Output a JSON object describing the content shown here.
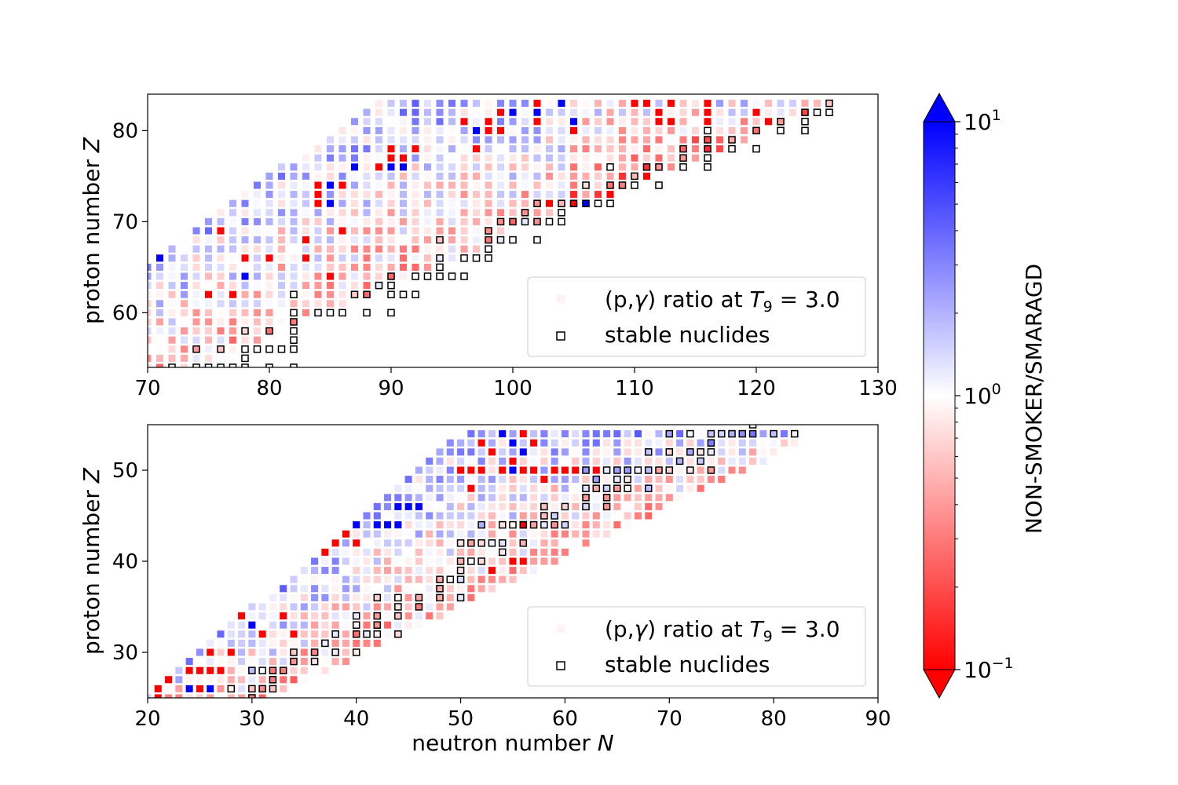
{
  "chart_data": [
    {
      "type": "heatmap",
      "panel": "top",
      "xlabel": "",
      "ylabel_text": "proton number ",
      "ylabel_var": "Z",
      "xlim": [
        70,
        130
      ],
      "ylim": [
        54,
        84
      ],
      "xticks": [
        70,
        80,
        90,
        100,
        110,
        120,
        130
      ],
      "yticks": [
        60,
        70,
        80
      ],
      "legend": {
        "placement": "lower-right",
        "ratio_label_prefix": "(p,",
        "ratio_label_gamma": "γ",
        "ratio_label_mid": ") ratio at ",
        "ratio_label_T": "T",
        "ratio_label_sub": "9",
        "ratio_label_value": " = 3.0",
        "stable_label": "stable nuclides"
      },
      "stable_nuclides": [
        [
          126,
          83
        ],
        [
          124,
          82
        ],
        [
          125,
          82
        ],
        [
          126,
          82
        ],
        [
          122,
          81
        ],
        [
          124,
          81
        ],
        [
          120,
          80
        ],
        [
          122,
          80
        ],
        [
          124,
          80
        ],
        [
          116,
          80
        ],
        [
          118,
          79
        ],
        [
          116,
          79
        ],
        [
          118,
          78
        ],
        [
          120,
          78
        ],
        [
          114,
          78
        ],
        [
          116,
          78
        ],
        [
          114,
          77
        ],
        [
          116,
          77
        ],
        [
          114,
          76
        ],
        [
          116,
          76
        ],
        [
          108,
          76
        ],
        [
          111,
          76
        ],
        [
          112,
          76
        ],
        [
          110,
          75
        ],
        [
          108,
          74
        ],
        [
          109,
          74
        ],
        [
          110,
          74
        ],
        [
          112,
          74
        ],
        [
          104,
          72
        ],
        [
          105,
          72
        ],
        [
          106,
          72
        ],
        [
          107,
          72
        ],
        [
          108,
          72
        ],
        [
          102,
          72
        ],
        [
          101,
          71
        ],
        [
          104,
          71
        ],
        [
          99,
          70
        ],
        [
          100,
          70
        ],
        [
          101,
          70
        ],
        [
          102,
          70
        ],
        [
          103,
          70
        ],
        [
          104,
          70
        ],
        [
          98,
          68
        ],
        [
          99,
          68
        ],
        [
          100,
          68
        ],
        [
          102,
          68
        ],
        [
          94,
          66
        ],
        [
          96,
          66
        ],
        [
          97,
          66
        ],
        [
          98,
          66
        ],
        [
          98,
          67
        ],
        [
          90,
          64
        ],
        [
          92,
          64
        ],
        [
          93,
          64
        ],
        [
          94,
          64
        ],
        [
          95,
          64
        ],
        [
          96,
          64
        ],
        [
          90,
          63
        ],
        [
          88,
          62
        ],
        [
          90,
          62
        ],
        [
          91,
          62
        ],
        [
          92,
          62
        ],
        [
          87,
          62
        ],
        [
          84,
          60
        ],
        [
          85,
          60
        ],
        [
          86,
          60
        ],
        [
          88,
          60
        ],
        [
          90,
          60
        ],
        [
          82,
          62
        ],
        [
          82,
          60
        ],
        [
          82,
          59
        ],
        [
          78,
          58
        ],
        [
          80,
          58
        ],
        [
          82,
          58
        ],
        [
          76,
          56
        ],
        [
          78,
          56
        ],
        [
          79,
          56
        ],
        [
          80,
          56
        ],
        [
          81,
          56
        ],
        [
          82,
          56
        ],
        [
          82,
          57
        ],
        [
          74,
          56
        ],
        [
          78,
          55
        ],
        [
          74,
          54
        ],
        [
          75,
          54
        ],
        [
          76,
          54
        ],
        [
          77,
          54
        ],
        [
          78,
          54
        ],
        [
          80,
          54
        ],
        [
          82,
          54
        ],
        [
          72,
          54
        ],
        [
          94,
          68
        ],
        [
          94,
          65
        ],
        [
          89,
          63
        ],
        [
          98,
          69
        ],
        [
          106,
          74
        ]
      ],
      "special_cells": {
        "red": [
          [
            102,
            83
          ],
          [
            110,
            83
          ],
          [
            111,
            83
          ],
          [
            113,
            83
          ],
          [
            116,
            83
          ],
          [
            99,
            82
          ],
          [
            102,
            81
          ],
          [
            98,
            81
          ],
          [
            96,
            81
          ],
          [
            98,
            80
          ],
          [
            99,
            80
          ],
          [
            112,
            82
          ],
          [
            112,
            81
          ],
          [
            116,
            82
          ],
          [
            120,
            82
          ],
          [
            121,
            81
          ],
          [
            113,
            81
          ],
          [
            116,
            81
          ],
          [
            105,
            80
          ],
          [
            90,
            78
          ],
          [
            92,
            78
          ],
          [
            90,
            77
          ],
          [
            91,
            77
          ],
          [
            89,
            76
          ],
          [
            91,
            77
          ],
          [
            84,
            74
          ],
          [
            84,
            73
          ],
          [
            86,
            74
          ],
          [
            84,
            72
          ],
          [
            83,
            68
          ],
          [
            76,
            69
          ],
          [
            86,
            69
          ],
          [
            78,
            66
          ],
          [
            80,
            66
          ],
          [
            83,
            66
          ],
          [
            85,
            64
          ],
          [
            75,
            62
          ],
          [
            77,
            62
          ],
          [
            84,
            58
          ],
          [
            82,
            54
          ],
          [
            97,
            78
          ],
          [
            103,
            72
          ],
          [
            105,
            72
          ],
          [
            107,
            72
          ],
          [
            109,
            73
          ],
          [
            112,
            74
          ],
          [
            111,
            75
          ],
          [
            108,
            73
          ]
        ],
        "blue": [
          [
            102,
            82
          ],
          [
            100,
            82
          ],
          [
            97,
            80
          ],
          [
            87,
            76
          ],
          [
            89,
            76
          ],
          [
            90,
            76
          ],
          [
            91,
            76
          ],
          [
            85,
            74
          ],
          [
            85,
            72
          ],
          [
            71,
            66
          ],
          [
            78,
            64
          ],
          [
            106,
            72
          ],
          [
            104,
            83
          ],
          [
            105,
            81
          ]
        ]
      }
    },
    {
      "type": "heatmap",
      "panel": "bottom",
      "xlabel_text": "neutron number ",
      "xlabel_var": "N",
      "ylabel_text": "proton number ",
      "ylabel_var": "Z",
      "xlim": [
        20,
        90
      ],
      "ylim": [
        25,
        55
      ],
      "xticks": [
        20,
        30,
        40,
        50,
        60,
        70,
        80,
        90
      ],
      "yticks": [
        30,
        40,
        50
      ],
      "legend": {
        "placement": "lower-right",
        "ratio_label_prefix": "(p,",
        "ratio_label_gamma": "γ",
        "ratio_label_mid": ") ratio at ",
        "ratio_label_T": "T",
        "ratio_label_sub": "9",
        "ratio_label_value": " = 3.0",
        "stable_label": "stable nuclides"
      },
      "stable_nuclides": [
        [
          70,
          54
        ],
        [
          72,
          54
        ],
        [
          74,
          54
        ],
        [
          75,
          54
        ],
        [
          76,
          54
        ],
        [
          77,
          54
        ],
        [
          78,
          54
        ],
        [
          80,
          54
        ],
        [
          82,
          54
        ],
        [
          78,
          55
        ],
        [
          74,
          53
        ],
        [
          68,
          52
        ],
        [
          70,
          52
        ],
        [
          72,
          52
        ],
        [
          73,
          52
        ],
        [
          74,
          52
        ],
        [
          71,
          51
        ],
        [
          73,
          51
        ],
        [
          62,
          50
        ],
        [
          64,
          50
        ],
        [
          65,
          50
        ],
        [
          66,
          50
        ],
        [
          67,
          50
        ],
        [
          68,
          50
        ],
        [
          69,
          50
        ],
        [
          70,
          50
        ],
        [
          72,
          50
        ],
        [
          74,
          50
        ],
        [
          63,
          49
        ],
        [
          65,
          49
        ],
        [
          62,
          48
        ],
        [
          63,
          48
        ],
        [
          64,
          48
        ],
        [
          65,
          48
        ],
        [
          66,
          48
        ],
        [
          68,
          48
        ],
        [
          62,
          47
        ],
        [
          64,
          47
        ],
        [
          58,
          46
        ],
        [
          60,
          46
        ],
        [
          62,
          46
        ],
        [
          64,
          46
        ],
        [
          59,
          45
        ],
        [
          56,
          44
        ],
        [
          57,
          44
        ],
        [
          58,
          44
        ],
        [
          59,
          44
        ],
        [
          60,
          44
        ],
        [
          52,
          44
        ],
        [
          54,
          44
        ],
        [
          55,
          44
        ],
        [
          56,
          44
        ],
        [
          58,
          45
        ],
        [
          50,
          42
        ],
        [
          51,
          42
        ],
        [
          52,
          42
        ],
        [
          53,
          42
        ],
        [
          54,
          42
        ],
        [
          56,
          42
        ],
        [
          54,
          41
        ],
        [
          50,
          40
        ],
        [
          51,
          40
        ],
        [
          52,
          40
        ],
        [
          50,
          39
        ],
        [
          48,
          38
        ],
        [
          49,
          38
        ],
        [
          50,
          38
        ],
        [
          48,
          37
        ],
        [
          50,
          36
        ],
        [
          48,
          36
        ],
        [
          46,
          36
        ],
        [
          44,
          36
        ],
        [
          42,
          36
        ],
        [
          44,
          35
        ],
        [
          46,
          35
        ],
        [
          40,
          34
        ],
        [
          42,
          34
        ],
        [
          44,
          34
        ],
        [
          40,
          33
        ],
        [
          42,
          33
        ],
        [
          38,
          32
        ],
        [
          40,
          32
        ],
        [
          41,
          32
        ],
        [
          42,
          32
        ],
        [
          44,
          32
        ],
        [
          36,
          30
        ],
        [
          38,
          30
        ],
        [
          40,
          30
        ],
        [
          37,
          31
        ],
        [
          34,
          30
        ],
        [
          36,
          29
        ],
        [
          34,
          29
        ],
        [
          32,
          28
        ],
        [
          33,
          28
        ],
        [
          30,
          28
        ],
        [
          31,
          28
        ],
        [
          32,
          27
        ],
        [
          28,
          26
        ],
        [
          30,
          26
        ],
        [
          31,
          26
        ],
        [
          32,
          26
        ],
        [
          30,
          25
        ],
        [
          66,
          49
        ]
      ],
      "special_cells": {
        "red": [
          [
            56,
            55
          ],
          [
            56,
            54
          ],
          [
            57,
            53
          ],
          [
            52,
            53
          ],
          [
            53,
            52
          ],
          [
            50,
            50
          ],
          [
            51,
            50
          ],
          [
            55,
            51
          ],
          [
            56,
            50
          ],
          [
            59,
            50
          ],
          [
            60,
            50
          ],
          [
            63,
            50
          ],
          [
            58,
            49
          ],
          [
            51,
            48
          ],
          [
            52,
            50
          ],
          [
            54,
            50
          ],
          [
            57,
            50
          ],
          [
            61,
            50
          ],
          [
            55,
            40
          ],
          [
            56,
            40
          ],
          [
            53,
            39
          ],
          [
            38,
            43
          ],
          [
            39,
            43
          ],
          [
            38,
            42
          ],
          [
            40,
            42
          ],
          [
            37,
            41
          ],
          [
            33,
            34
          ],
          [
            29,
            34
          ],
          [
            31,
            32
          ],
          [
            34,
            32
          ],
          [
            28,
            30
          ],
          [
            24,
            30
          ],
          [
            26,
            30
          ],
          [
            22,
            29
          ],
          [
            24,
            28
          ],
          [
            25,
            28
          ],
          [
            26,
            28
          ],
          [
            27,
            28
          ],
          [
            22,
            27
          ],
          [
            21,
            26
          ],
          [
            25,
            26
          ],
          [
            21,
            25
          ],
          [
            56,
            44
          ]
        ],
        "blue": [
          [
            54,
            54
          ],
          [
            55,
            53
          ],
          [
            53,
            52
          ],
          [
            56,
            52
          ],
          [
            55,
            50
          ],
          [
            40,
            44
          ],
          [
            42,
            44
          ],
          [
            43,
            44
          ],
          [
            44,
            44
          ],
          [
            45,
            46
          ],
          [
            44,
            46
          ],
          [
            40,
            42
          ],
          [
            33,
            34
          ],
          [
            30,
            33
          ],
          [
            31,
            32
          ],
          [
            24,
            26
          ],
          [
            26,
            26
          ],
          [
            20,
            26
          ],
          [
            22,
            28
          ],
          [
            46,
            46
          ]
        ]
      }
    }
  ],
  "colorbar": {
    "label": "NON-SMOKER/SMARAGD",
    "scale": "log",
    "range": [
      0.1,
      10
    ],
    "ticks": [
      {
        "base": "10",
        "exp": "1",
        "value": 10
      },
      {
        "base": "10",
        "exp": "0",
        "value": 1
      },
      {
        "base": "10",
        "exp": "−1",
        "value": 0.1
      }
    ],
    "colors": {
      "low": "#ff0000",
      "mid": "#ffffff",
      "high": "#0000ff"
    }
  }
}
